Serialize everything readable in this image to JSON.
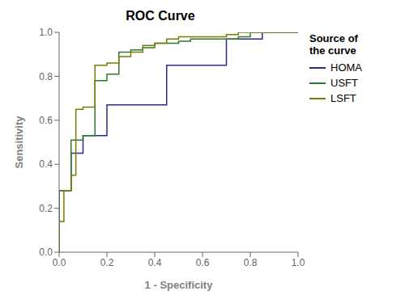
{
  "chart_data": {
    "type": "line",
    "title": "ROC Curve",
    "x_label": "1 - Specificity",
    "y_label": "Sensitivity",
    "legend_title": "Source of\nthe curve",
    "legend": "right",
    "grid": false,
    "xlim": [
      0.0,
      1.0
    ],
    "ylim": [
      0.0,
      1.0
    ],
    "xticks": [
      {
        "value": 0.0,
        "label": "0.0"
      },
      0.2,
      0.4,
      0.6,
      0.8,
      {
        "value": 1.0,
        "label": "1.0"
      }
    ],
    "yticks": [
      {
        "value": 0.0,
        "label": "0.0"
      },
      0.2,
      0.4,
      0.6,
      0.8,
      {
        "value": 1.0,
        "label": "1.0"
      }
    ],
    "series": [
      {
        "name": "HOMA",
        "color": "#2b2b8c",
        "x": [
          0.0,
          0.0,
          0.05,
          0.05,
          0.1,
          0.1,
          0.15,
          0.15,
          0.2,
          0.2,
          0.3,
          0.3,
          0.35,
          0.35,
          0.4,
          0.4,
          0.45,
          0.45,
          0.5,
          0.5,
          0.55,
          0.55,
          0.6,
          0.6,
          0.65,
          0.65,
          0.7,
          0.7,
          0.75,
          0.75,
          0.8,
          0.8,
          0.85,
          0.85,
          0.9,
          0.9,
          0.95,
          0.95,
          1.0
        ],
        "values": [
          0.0,
          0.28,
          0.28,
          0.45,
          0.45,
          0.53,
          0.53,
          0.53,
          0.53,
          0.67,
          0.67,
          0.67,
          0.67,
          0.67,
          0.67,
          0.67,
          0.67,
          0.85,
          0.85,
          0.85,
          0.85,
          0.85,
          0.85,
          0.85,
          0.85,
          0.85,
          0.85,
          0.97,
          0.97,
          0.97,
          0.97,
          0.97,
          0.97,
          1.0,
          1.0,
          1.0,
          1.0,
          1.0,
          1.0
        ]
      },
      {
        "name": "USFT",
        "color": "#2d7a2d",
        "x": [
          0.0,
          0.0,
          0.05,
          0.05,
          0.1,
          0.1,
          0.15,
          0.15,
          0.2,
          0.2,
          0.25,
          0.25,
          0.3,
          0.3,
          0.35,
          0.35,
          0.4,
          0.4,
          0.45,
          0.45,
          0.5,
          0.5,
          0.55,
          0.55,
          0.6,
          0.6,
          0.65,
          0.65,
          0.7,
          0.7,
          0.75,
          0.75,
          0.8,
          0.8,
          0.85,
          0.85,
          0.9,
          0.9,
          0.95,
          0.95,
          1.0
        ],
        "values": [
          0.0,
          0.28,
          0.28,
          0.51,
          0.51,
          0.53,
          0.53,
          0.78,
          0.78,
          0.81,
          0.81,
          0.91,
          0.91,
          0.92,
          0.92,
          0.93,
          0.93,
          0.95,
          0.95,
          0.95,
          0.95,
          0.96,
          0.96,
          0.97,
          0.97,
          0.97,
          0.97,
          0.97,
          0.97,
          0.97,
          0.97,
          0.98,
          0.98,
          1.0,
          1.0,
          1.0,
          1.0,
          1.0,
          1.0,
          1.0,
          1.0
        ]
      },
      {
        "name": "LSFT",
        "color": "#7a7a00",
        "x": [
          0.0,
          0.0,
          0.02,
          0.02,
          0.05,
          0.05,
          0.07,
          0.07,
          0.1,
          0.1,
          0.15,
          0.15,
          0.2,
          0.2,
          0.25,
          0.25,
          0.3,
          0.3,
          0.35,
          0.35,
          0.4,
          0.4,
          0.45,
          0.45,
          0.5,
          0.5,
          0.55,
          0.55,
          0.6,
          0.6,
          0.65,
          0.65,
          0.7,
          0.7,
          0.75,
          0.75,
          0.8,
          0.8,
          0.85,
          0.85,
          0.9,
          0.9,
          0.95,
          0.95,
          1.0
        ],
        "values": [
          0.0,
          0.14,
          0.14,
          0.28,
          0.28,
          0.35,
          0.35,
          0.65,
          0.65,
          0.66,
          0.66,
          0.85,
          0.85,
          0.86,
          0.86,
          0.89,
          0.89,
          0.91,
          0.91,
          0.94,
          0.94,
          0.95,
          0.95,
          0.97,
          0.97,
          0.98,
          0.98,
          0.98,
          0.98,
          0.98,
          0.98,
          0.98,
          0.98,
          0.99,
          0.99,
          1.0,
          1.0,
          1.0,
          1.0,
          1.0,
          1.0,
          1.0,
          1.0,
          1.0,
          1.0
        ]
      }
    ]
  }
}
